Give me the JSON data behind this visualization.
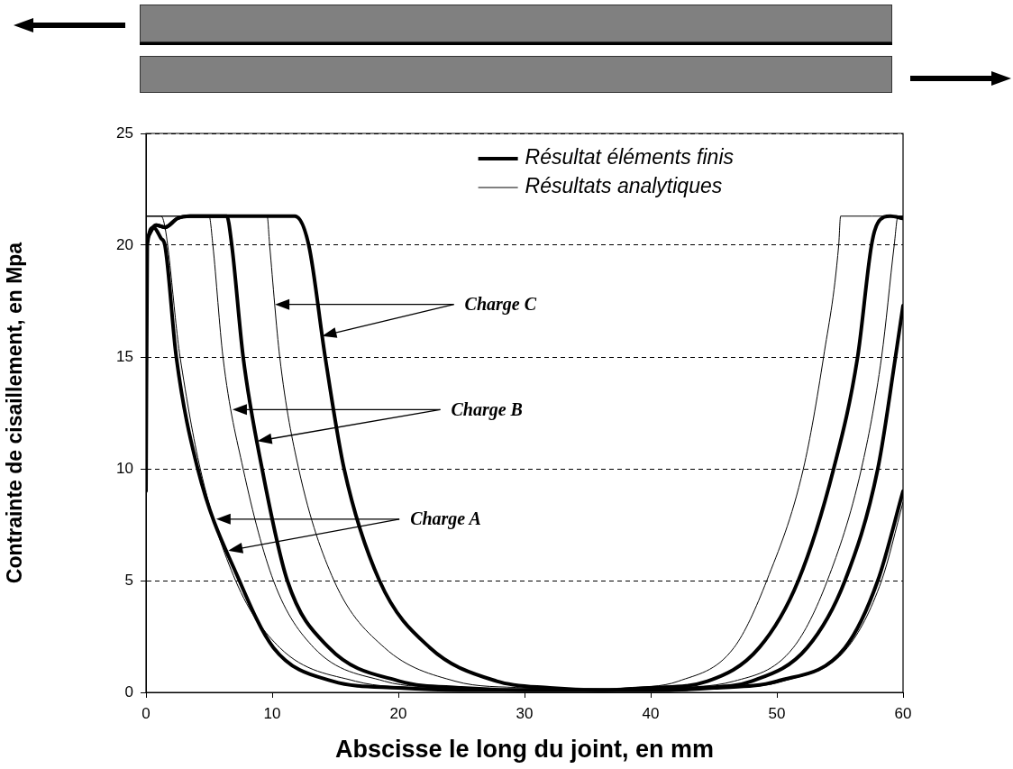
{
  "chart_data": {
    "type": "line",
    "xlabel": "Abscisse le long du joint, en mm",
    "ylabel": "Contrainte de cisaillement, en Mpa",
    "xlim": [
      0,
      60
    ],
    "xticks": [
      0,
      10,
      20,
      30,
      40,
      50,
      60
    ],
    "ylim": [
      0,
      25
    ],
    "yticks": [
      0,
      5,
      10,
      15,
      20,
      25
    ],
    "grid": "y",
    "legend": "top right",
    "marker": "none",
    "line_style": "solid",
    "series": [
      {
        "name": "Résultat éléments finis",
        "color": "#000000",
        "x": [
          0,
          0.1,
          0.6,
          1.2,
          1.5,
          2.4,
          4.1,
          7.4,
          10.1,
          14.8,
          20,
          25,
          30,
          35,
          40,
          45,
          50,
          55.4,
          58,
          60
        ],
        "values": [
          9,
          20,
          20.8,
          20.3,
          20,
          15,
          10,
          5,
          2,
          0.5,
          0.2,
          0.1,
          0.1,
          0.1,
          0.1,
          0.2,
          0.5,
          2,
          5,
          9
        ]
      },
      {
        "color": "#000000",
        "x": [
          0,
          0.8,
          1.5,
          2.5,
          3.5,
          6.4,
          6.8,
          7.7,
          9.2,
          11.2,
          14.5,
          20.1,
          25,
          30,
          35,
          40,
          44,
          48,
          52.4,
          55.4,
          58,
          59.4,
          60
        ],
        "values": [
          20.2,
          20.9,
          20.8,
          21.2,
          21.3,
          21.3,
          20,
          15,
          10,
          5,
          2,
          0.5,
          0.2,
          0.1,
          0.1,
          0.1,
          0.2,
          0.5,
          2,
          5,
          10,
          15,
          17.3
        ]
      },
      {
        "color": "#000000",
        "x": [
          0,
          0.8,
          1.5,
          2.5,
          3.5,
          11.8,
          12.9,
          14.2,
          15.7,
          18.5,
          22.5,
          27.8,
          32,
          36,
          40,
          44.5,
          48.6,
          51.7,
          54.5,
          56.4,
          57.5,
          58,
          59,
          60
        ],
        "values": [
          20.2,
          20.9,
          20.8,
          21.2,
          21.3,
          21.3,
          20,
          15,
          10,
          5,
          2,
          0.5,
          0.2,
          0.1,
          0.2,
          0.5,
          2,
          5,
          10,
          15,
          20,
          21,
          21.3,
          21.2
        ]
      },
      {
        "name": "Résultats analytiques",
        "color": "#000000",
        "x": [
          0,
          1.2,
          2.7,
          4.3,
          7.1,
          10.6,
          16.6,
          22,
          28,
          34,
          40,
          46,
          50.5,
          55.6,
          58.3,
          60
        ],
        "values": [
          21.3,
          21.3,
          15,
          10,
          5,
          2,
          0.5,
          0.2,
          0.1,
          0.1,
          0.1,
          0.2,
          0.5,
          2,
          5,
          8.5
        ]
      },
      {
        "color": "#000000",
        "x": [
          0,
          5,
          5.3,
          6.1,
          7.7,
          10.1,
          13.3,
          18.9,
          24,
          30,
          36,
          41,
          46.6,
          51.3,
          54,
          56.7,
          58.3,
          59.3,
          59.6,
          60
        ],
        "values": [
          21.3,
          21.3,
          20,
          15,
          10,
          5,
          2,
          0.5,
          0.2,
          0.1,
          0.1,
          0.2,
          0.5,
          2,
          5,
          10,
          15,
          20,
          21.3,
          21.3
        ]
      },
      {
        "color": "#000000",
        "x": [
          0,
          9.6,
          9.8,
          10.6,
          12.1,
          14.9,
          18.9,
          24.5,
          30,
          35,
          38,
          42.2,
          46.6,
          49.2,
          52.1,
          53.7,
          54.9,
          55.05,
          60
        ],
        "values": [
          21.3,
          21.3,
          20,
          15,
          10,
          5,
          2,
          0.5,
          0.2,
          0.1,
          0.2,
          0.5,
          2,
          5,
          10,
          15,
          20,
          21.3,
          21.3
        ]
      }
    ],
    "annotations": [
      "Charge A",
      "Charge B",
      "Charge C"
    ]
  }
}
